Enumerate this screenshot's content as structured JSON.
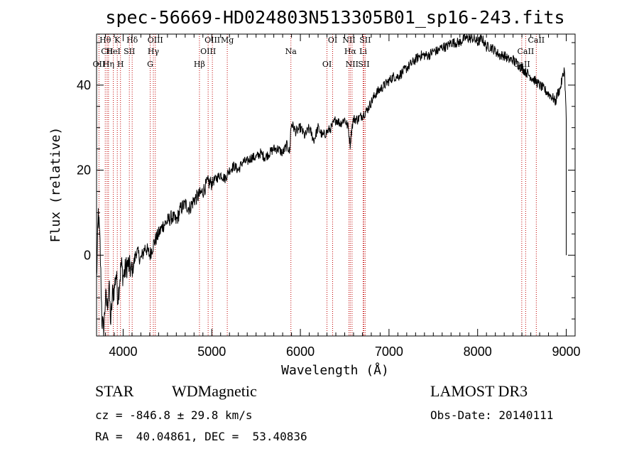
{
  "chart_data": {
    "type": "line",
    "title": "spec-56669-HD024803N513305B01_sp16-243.fits",
    "xlabel": "Wavelength (Å)",
    "ylabel": "Flux (relative)",
    "xlim": [
      3700,
      9100
    ],
    "ylim": [
      -19,
      52
    ],
    "xticks": [
      4000,
      5000,
      6000,
      7000,
      8000,
      9000
    ],
    "yticks": [
      0,
      20,
      40
    ],
    "series": [
      {
        "name": "spectrum",
        "x": [
          3700,
          3720,
          3740,
          3760,
          3780,
          3800,
          3820,
          3840,
          3860,
          3880,
          3900,
          3920,
          3940,
          3960,
          3980,
          4000,
          4050,
          4100,
          4150,
          4200,
          4250,
          4300,
          4350,
          4400,
          4450,
          4500,
          4550,
          4600,
          4650,
          4700,
          4750,
          4800,
          4850,
          4900,
          4950,
          5000,
          5050,
          5100,
          5150,
          5200,
          5250,
          5300,
          5350,
          5400,
          5450,
          5500,
          5550,
          5600,
          5650,
          5700,
          5750,
          5800,
          5850,
          5880,
          5890,
          5900,
          5950,
          6000,
          6050,
          6100,
          6150,
          6200,
          6250,
          6300,
          6350,
          6400,
          6450,
          6500,
          6540,
          6562,
          6580,
          6600,
          6650,
          6700,
          6750,
          6800,
          6850,
          6900,
          6950,
          7000,
          7050,
          7100,
          7150,
          7200,
          7250,
          7300,
          7350,
          7400,
          7450,
          7500,
          7550,
          7600,
          7650,
          7700,
          7750,
          7800,
          7850,
          7900,
          7950,
          8000,
          8050,
          8100,
          8150,
          8200,
          8250,
          8300,
          8350,
          8400,
          8450,
          8500,
          8550,
          8600,
          8650,
          8700,
          8750,
          8800,
          8850,
          8880,
          8900,
          8930,
          8960,
          8980,
          8990,
          9000
        ],
        "values": [
          -6,
          10,
          2,
          -15,
          -18,
          -10,
          -12,
          -7,
          -16,
          -9,
          -8,
          -4,
          -10,
          -6,
          -2,
          -5,
          -2,
          -4,
          1,
          -1,
          2,
          0,
          3,
          5,
          7,
          8,
          9,
          8,
          11,
          12,
          11,
          13,
          14,
          15,
          17,
          17,
          18,
          19,
          18,
          20,
          21,
          20,
          22,
          22,
          23,
          23,
          24,
          23,
          24,
          25,
          25,
          24,
          26,
          24,
          29,
          31,
          29,
          30,
          28,
          30,
          27,
          30,
          28,
          29,
          30,
          32,
          31,
          32,
          30,
          26,
          30,
          32,
          32,
          33,
          34,
          36,
          38,
          39,
          40,
          41,
          42,
          42,
          43,
          44,
          45,
          46,
          47,
          47,
          47,
          48,
          48,
          49,
          49,
          50,
          50,
          50,
          51,
          51,
          51,
          50,
          51,
          49,
          49,
          48,
          47,
          47,
          46,
          46,
          45,
          44,
          43,
          42,
          41,
          40,
          39,
          38,
          37,
          36,
          38,
          39,
          42,
          44,
          38,
          32
        ]
      }
    ],
    "reference_lines": [
      {
        "label": "Hθ",
        "x": 3798
      },
      {
        "label": "CII",
        "x": 3819
      },
      {
        "label": "OII",
        "x": 3727
      },
      {
        "label": "K",
        "x": 3934
      },
      {
        "label": "HeI",
        "x": 3889
      },
      {
        "label": "Hη",
        "x": 3835
      },
      {
        "label": "Hδ",
        "x": 4102
      },
      {
        "label": "SII",
        "x": 4070
      },
      {
        "label": "H",
        "x": 3970
      },
      {
        "label": "OIII",
        "x": 4363
      },
      {
        "label": "Hγ",
        "x": 4341
      },
      {
        "label": "G",
        "x": 4305
      },
      {
        "label": "OIII",
        "x": 5007
      },
      {
        "label": "OIII",
        "x": 4959
      },
      {
        "label": "Hβ",
        "x": 4861
      },
      {
        "label": "Mg",
        "x": 5175
      },
      {
        "label": "Na",
        "x": 5893
      },
      {
        "label": "OI",
        "x": 6300
      },
      {
        "label": "OI",
        "x": 6364
      },
      {
        "label": "Hα",
        "x": 6563
      },
      {
        "label": "SII",
        "x": 6716
      },
      {
        "label": "NII",
        "x": 6548
      },
      {
        "label": "Li",
        "x": 6708
      },
      {
        "label": "NII",
        "x": 6583
      },
      {
        "label": "SII",
        "x": 6731
      },
      {
        "label": "CaII",
        "x": 8542
      },
      {
        "label": "CaII",
        "x": 8498
      },
      {
        "label": "CaII",
        "x": 8662
      }
    ]
  },
  "info": {
    "object_class": "STAR",
    "subclass": "WDMagnetic",
    "survey": "LAMOST DR3",
    "cz": "cz = -846.8 ± 29.8 km/s",
    "obs_date": "Obs-Date: 20140111",
    "coords": "RA =  40.04861, DEC =  53.40836"
  },
  "colors": {
    "line": "#000000",
    "ref_line": "#c00000",
    "background": "#ffffff"
  }
}
